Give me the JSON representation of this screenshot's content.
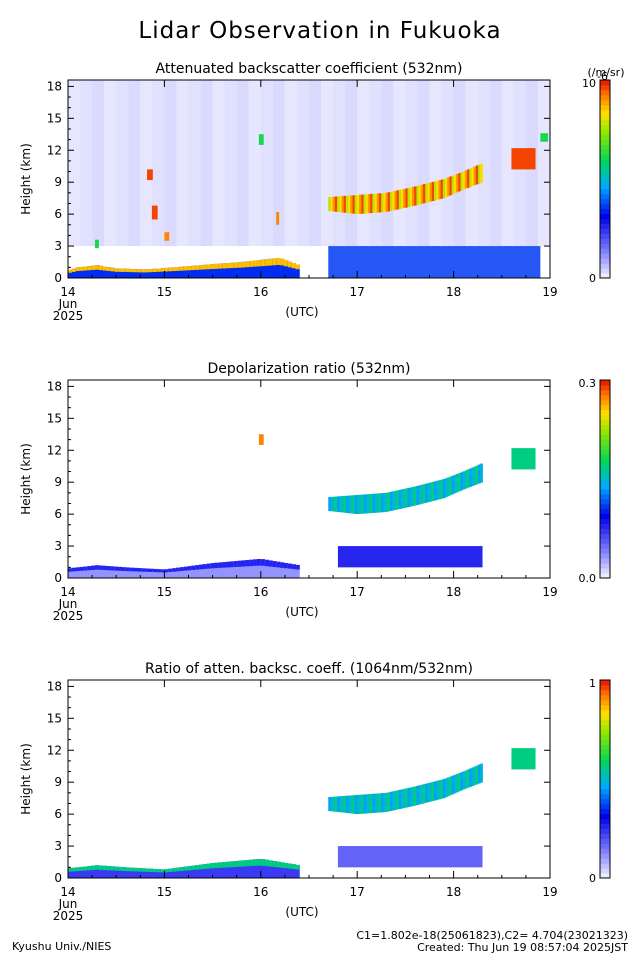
{
  "title": "Lidar Observation in Fukuoka",
  "chart_data": [
    {
      "type": "heatmap",
      "title": "Attenuated backscatter coefficient (532nm)",
      "ylabel": "Height (km)",
      "ylim": [
        0,
        18.6
      ],
      "yticks": [
        0,
        3,
        6,
        9,
        12,
        15,
        18
      ],
      "xlim": [
        14,
        19
      ],
      "xticks": [
        "14",
        "15",
        "16",
        "17",
        "18",
        "19"
      ],
      "x_date_sublabels": [
        "Jun",
        "2025"
      ],
      "xunit": "(UTC)",
      "colorbar": {
        "min_label": "0",
        "max_label": "10",
        "max_exponent": "-6",
        "unit": "(/m/sr)"
      },
      "features": [
        {
          "kind": "boundary_layer",
          "x": [
            14.0,
            14.1,
            14.3,
            14.5,
            14.8,
            15.1,
            15.5,
            15.8,
            16.2,
            16.4
          ],
          "top_km": [
            0.7,
            1.0,
            1.2,
            0.9,
            0.8,
            1.0,
            1.3,
            1.5,
            1.9,
            1.2
          ],
          "level": 0.85
        },
        {
          "kind": "cloud",
          "x": [
            14.82,
            14.88
          ],
          "y": [
            9.2,
            10.2
          ],
          "level": 0.95
        },
        {
          "kind": "cloud",
          "x": [
            14.87,
            14.93
          ],
          "y": [
            5.5,
            6.8
          ],
          "level": 0.95
        },
        {
          "kind": "cloud",
          "x": [
            15.0,
            15.05
          ],
          "y": [
            3.5,
            4.3
          ],
          "level": 0.9
        },
        {
          "kind": "cloud",
          "x": [
            14.28,
            14.32
          ],
          "y": [
            2.8,
            3.6
          ],
          "level": 0.6
        },
        {
          "kind": "cloud",
          "x": [
            15.98,
            16.03
          ],
          "y": [
            12.5,
            13.5
          ],
          "level": 0.6
        },
        {
          "kind": "cloud",
          "x": [
            16.16,
            16.19
          ],
          "y": [
            5.0,
            6.2
          ],
          "level": 0.9
        },
        {
          "kind": "cloud_layer",
          "x": [
            16.7,
            17.0,
            17.3,
            17.6,
            17.9,
            18.1,
            18.3
          ],
          "base_km": [
            6.3,
            6.0,
            6.2,
            6.8,
            7.5,
            8.3,
            9.0
          ],
          "top_km": [
            7.6,
            7.8,
            8.0,
            8.6,
            9.3,
            10.0,
            10.8
          ],
          "level": 0.95
        },
        {
          "kind": "cloud",
          "x": [
            18.6,
            18.85
          ],
          "y": [
            10.2,
            12.2
          ],
          "level": 0.95
        },
        {
          "kind": "cloud",
          "x": [
            18.9,
            18.98
          ],
          "y": [
            12.8,
            13.6
          ],
          "level": 0.6
        },
        {
          "kind": "aerosol",
          "x": [
            16.7,
            18.9
          ],
          "y": [
            0.0,
            3.0
          ],
          "level": 0.35
        }
      ]
    },
    {
      "type": "heatmap",
      "title": "Depolarization ratio (532nm)",
      "ylabel": "Height (km)",
      "ylim": [
        0,
        18.6
      ],
      "yticks": [
        0,
        3,
        6,
        9,
        12,
        15,
        18
      ],
      "xlim": [
        14,
        19
      ],
      "xticks": [
        "14",
        "15",
        "16",
        "17",
        "18",
        "19"
      ],
      "x_date_sublabels": [
        "Jun",
        "2025"
      ],
      "xunit": "(UTC)",
      "colorbar": {
        "min_label": "0.0",
        "max_label": "0.3"
      },
      "features": [
        {
          "kind": "boundary_layer",
          "x": [
            14.0,
            14.3,
            14.6,
            15.0,
            15.5,
            16.0,
            16.4
          ],
          "top_km": [
            0.9,
            1.2,
            1.0,
            0.8,
            1.4,
            1.8,
            1.2
          ],
          "level": 0.25
        },
        {
          "kind": "cloud_layer",
          "x": [
            16.7,
            17.0,
            17.3,
            17.6,
            17.9,
            18.1,
            18.3
          ],
          "base_km": [
            6.3,
            6.0,
            6.2,
            6.8,
            7.5,
            8.3,
            9.0
          ],
          "top_km": [
            7.6,
            7.8,
            8.0,
            8.6,
            9.3,
            10.0,
            10.8
          ],
          "level": 0.55
        },
        {
          "kind": "aerosol",
          "x": [
            16.8,
            18.3
          ],
          "y": [
            1.0,
            3.0
          ],
          "level": 0.3
        },
        {
          "kind": "cloud",
          "x": [
            15.98,
            16.03
          ],
          "y": [
            12.5,
            13.5
          ],
          "level": 0.9
        },
        {
          "kind": "cloud",
          "x": [
            18.6,
            18.85
          ],
          "y": [
            10.2,
            12.2
          ],
          "level": 0.55
        }
      ]
    },
    {
      "type": "heatmap",
      "title": "Ratio of atten. backsc. coeff. (1064nm/532nm)",
      "ylabel": "Height (km)",
      "ylim": [
        0,
        18.6
      ],
      "yticks": [
        0,
        3,
        6,
        9,
        12,
        15,
        18
      ],
      "xlim": [
        14,
        19
      ],
      "xticks": [
        "14",
        "15",
        "16",
        "17",
        "18",
        "19"
      ],
      "x_date_sublabels": [
        "Jun",
        "2025"
      ],
      "xunit": "(UTC)",
      "colorbar": {
        "min_label": "0",
        "max_label": "1"
      },
      "features": [
        {
          "kind": "boundary_layer",
          "x": [
            14.0,
            14.3,
            14.6,
            15.0,
            15.5,
            16.0,
            16.4
          ],
          "top_km": [
            0.9,
            1.2,
            1.0,
            0.8,
            1.4,
            1.8,
            1.2
          ],
          "level": 0.55
        },
        {
          "kind": "cloud_layer",
          "x": [
            16.7,
            17.0,
            17.3,
            17.6,
            17.9,
            18.1,
            18.3
          ],
          "base_km": [
            6.3,
            6.0,
            6.2,
            6.8,
            7.5,
            8.3,
            9.0
          ],
          "top_km": [
            7.6,
            7.8,
            8.0,
            8.6,
            9.3,
            10.0,
            10.8
          ],
          "level": 0.55
        },
        {
          "kind": "aerosol",
          "x": [
            16.8,
            18.3
          ],
          "y": [
            1.0,
            3.0
          ],
          "level": 0.2
        },
        {
          "kind": "cloud",
          "x": [
            18.6,
            18.85
          ],
          "y": [
            10.2,
            12.2
          ],
          "level": 0.55
        }
      ]
    }
  ],
  "footer": {
    "left": "Kyushu Univ./NIES",
    "calib": "C1=1.802e-18(25061823),C2= 4.704(23021323)",
    "created": "Created: Thu Jun 19 08:57:04 2025JST"
  }
}
